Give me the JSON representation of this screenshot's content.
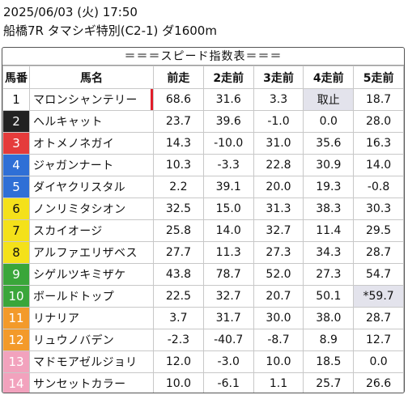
{
  "header": {
    "datetime": "2025/06/03 (火) 17:50",
    "race": "船橋7R タマシギ特別(C2-1) ダ1600m"
  },
  "table": {
    "title": "＝＝＝スピード指数表＝＝＝",
    "columns": [
      "馬番",
      "馬名",
      "前走",
      "2走前",
      "3走前",
      "4走前",
      "5走前"
    ],
    "colors": {
      "1": "#ffffff",
      "2": "#222222",
      "3": "#e53b3b",
      "4": "#2f6fd6",
      "5": "#f4e11a",
      "6": "#3aa63a",
      "7": "#f39a2a",
      "8": "#f2a2bd"
    },
    "rows": [
      {
        "no": "1",
        "frame": 1,
        "name": "マロンシャンテリー",
        "marked": true,
        "v": [
          "68.6",
          "31.6",
          "3.3",
          "取止",
          "18.7"
        ],
        "hl": [
          3
        ]
      },
      {
        "no": "2",
        "frame": 2,
        "name": "ヘルキャット",
        "marked": false,
        "v": [
          "23.7",
          "39.6",
          "-1.0",
          "0.0",
          "28.0"
        ],
        "hl": []
      },
      {
        "no": "3",
        "frame": 3,
        "name": "オトメノネガイ",
        "marked": false,
        "v": [
          "14.3",
          "-10.0",
          "31.0",
          "35.6",
          "16.3"
        ],
        "hl": []
      },
      {
        "no": "4",
        "frame": 4,
        "name": "ジャガンナート",
        "marked": false,
        "v": [
          "10.3",
          "-3.3",
          "22.8",
          "30.9",
          "14.0"
        ],
        "hl": []
      },
      {
        "no": "5",
        "frame": 4,
        "name": "ダイヤクリスタル",
        "marked": false,
        "v": [
          "2.2",
          "39.1",
          "20.0",
          "19.3",
          "-0.8"
        ],
        "hl": []
      },
      {
        "no": "6",
        "frame": 5,
        "name": "ノンリミタシオン",
        "marked": false,
        "v": [
          "32.5",
          "15.0",
          "31.3",
          "38.3",
          "30.3"
        ],
        "hl": []
      },
      {
        "no": "7",
        "frame": 5,
        "name": "スカイオージ",
        "marked": false,
        "v": [
          "25.8",
          "14.0",
          "32.7",
          "11.4",
          "29.5"
        ],
        "hl": []
      },
      {
        "no": "8",
        "frame": 5,
        "name": "アルファエリザベス",
        "marked": false,
        "v": [
          "27.7",
          "11.3",
          "27.3",
          "34.3",
          "28.7"
        ],
        "hl": []
      },
      {
        "no": "9",
        "frame": 6,
        "name": "シゲルツキミザケ",
        "marked": false,
        "v": [
          "43.8",
          "78.7",
          "52.0",
          "27.3",
          "54.7"
        ],
        "hl": []
      },
      {
        "no": "10",
        "frame": 6,
        "name": "ボールドトップ",
        "marked": false,
        "v": [
          "22.5",
          "32.7",
          "20.7",
          "50.1",
          "*59.7"
        ],
        "hl": [
          4
        ]
      },
      {
        "no": "11",
        "frame": 7,
        "name": "リナリア",
        "marked": false,
        "v": [
          "3.7",
          "31.7",
          "30.0",
          "38.0",
          "28.7"
        ],
        "hl": []
      },
      {
        "no": "12",
        "frame": 7,
        "name": "リュウノバデン",
        "marked": false,
        "v": [
          "-2.3",
          "-40.7",
          "-8.7",
          "8.9",
          "12.7"
        ],
        "hl": []
      },
      {
        "no": "13",
        "frame": 8,
        "name": "マドモアゼルジョリ",
        "marked": false,
        "v": [
          "12.0",
          "-3.0",
          "10.0",
          "18.5",
          "0.0"
        ],
        "hl": []
      },
      {
        "no": "14",
        "frame": 8,
        "name": "サンセットカラー",
        "marked": false,
        "v": [
          "10.0",
          "-6.1",
          "1.1",
          "25.7",
          "26.6"
        ],
        "hl": []
      }
    ]
  }
}
